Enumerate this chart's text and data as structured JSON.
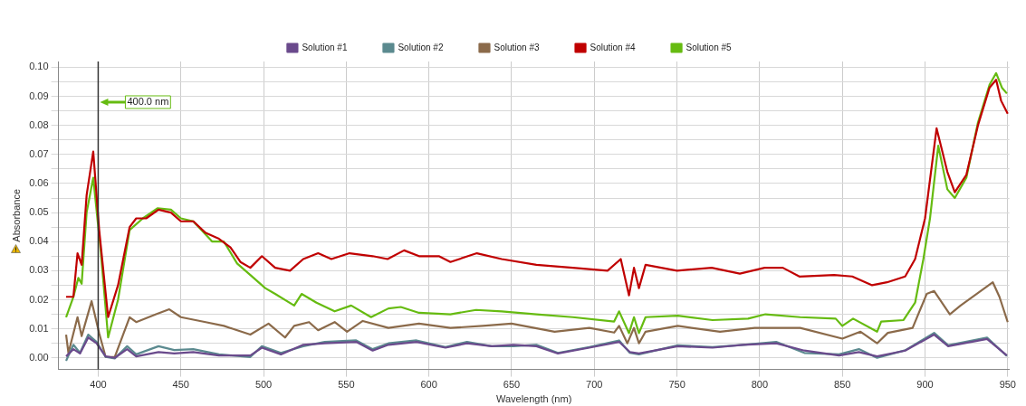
{
  "chart_data": {
    "type": "line",
    "xlabel": "Wavelength (nm)",
    "ylabel": "Absorbance",
    "xlim": [
      376,
      951
    ],
    "ylim": [
      -0.004,
      0.102
    ],
    "xticks": [
      400,
      450,
      500,
      550,
      600,
      650,
      700,
      750,
      800,
      850,
      900,
      950
    ],
    "yticks": [
      {
        "value": 0,
        "label": "0.00"
      },
      {
        "value": 0.005,
        "label": null
      },
      {
        "value": 0.01,
        "label": "0.01"
      },
      {
        "value": 0.015,
        "label": null
      },
      {
        "value": 0.02,
        "label": "0.02"
      },
      {
        "value": 0.025,
        "label": null
      },
      {
        "value": 0.03,
        "label": "0.03"
      },
      {
        "value": 0.035,
        "label": null
      },
      {
        "value": 0.04,
        "label": "0.04"
      },
      {
        "value": 0.045,
        "label": null
      },
      {
        "value": 0.05,
        "label": "0.05"
      },
      {
        "value": 0.055,
        "label": null
      },
      {
        "value": 0.06,
        "label": "0.06"
      },
      {
        "value": 0.065,
        "label": null
      },
      {
        "value": 0.07,
        "label": "0.07"
      },
      {
        "value": 0.075,
        "label": null
      },
      {
        "value": 0.08,
        "label": "0.08"
      },
      {
        "value": 0.085,
        "label": null
      },
      {
        "value": 0.09,
        "label": "0.09"
      },
      {
        "value": 0.095,
        "label": null
      },
      {
        "value": 0.1,
        "label": "0.10"
      }
    ],
    "grid": true,
    "legend": "top",
    "marker": "none",
    "line_style": "solid",
    "ref_lines": [
      {
        "axis": "x",
        "value": 400,
        "label": "400.0 nm",
        "color": "#333333"
      }
    ],
    "series": [
      {
        "name": "Solution #1",
        "color": "#6a4a8c",
        "x": [
          380.6,
          385,
          389,
          394,
          399,
          404.5,
          410,
          417.5,
          423,
          436.5,
          446,
          457.5,
          473,
          492,
          499,
          510.5,
          524,
          537,
          556,
          566,
          575.5,
          592.5,
          610,
          623,
          638,
          651,
          665,
          678,
          697,
          715,
          721.5,
          727,
          750.5,
          771.5,
          790,
          810,
          827,
          848,
          860,
          871,
          888,
          905.5,
          914,
          937.5,
          949.5
        ],
        "values": [
          0.0005,
          0.003,
          0.0015,
          0.007,
          0.005,
          0.0005,
          0.0,
          0.003,
          0.0005,
          0.002,
          0.0015,
          0.002,
          0.0008,
          0.0008,
          0.0035,
          0.0012,
          0.0045,
          0.005,
          0.0055,
          0.0025,
          0.0045,
          0.0055,
          0.0035,
          0.005,
          0.004,
          0.0045,
          0.004,
          0.0015,
          0.0035,
          0.0055,
          0.002,
          0.0015,
          0.004,
          0.0035,
          0.0045,
          0.005,
          0.0025,
          0.0008,
          0.002,
          0.0005,
          0.0025,
          0.008,
          0.004,
          0.0065,
          0.0008
        ]
      },
      {
        "name": "Solution #2",
        "color": "#5b8a8f",
        "x": [
          380.6,
          385,
          389,
          394,
          399,
          404.5,
          410,
          417.5,
          423,
          436.5,
          446,
          457.5,
          473,
          492,
          499,
          510.5,
          524,
          537,
          556,
          566,
          575.5,
          592.5,
          610,
          623,
          638,
          651,
          665,
          678,
          697,
          715,
          721.5,
          727,
          750.5,
          771.5,
          790,
          810,
          827,
          848,
          860,
          871,
          888,
          905.5,
          914,
          937.5,
          949.5
        ],
        "values": [
          -0.001,
          0.0045,
          0.0017,
          0.008,
          0.0055,
          0.0003,
          -0.0002,
          0.004,
          0.0012,
          0.004,
          0.0027,
          0.003,
          0.0012,
          0.0003,
          0.004,
          0.0017,
          0.004,
          0.0055,
          0.006,
          0.003,
          0.005,
          0.006,
          0.0037,
          0.0055,
          0.004,
          0.004,
          0.0045,
          0.0017,
          0.0037,
          0.006,
          0.0017,
          0.0012,
          0.0043,
          0.0037,
          0.0045,
          0.0055,
          0.0017,
          0.0012,
          0.003,
          0.0,
          0.0026,
          0.0086,
          0.0043,
          0.007,
          0.0006
        ]
      },
      {
        "name": "Solution #3",
        "color": "#8b6a4a",
        "x": [
          380.6,
          382,
          387.5,
          390,
          396,
          400.6,
          404.5,
          410,
          419,
          423,
          435,
          443,
          450,
          465,
          476,
          492,
          503,
          513,
          518.5,
          527.5,
          533,
          543,
          550.5,
          560,
          575.5,
          594,
          613,
          632.5,
          650,
          676,
          697,
          712,
          715,
          720,
          724,
          727,
          731,
          750.5,
          776,
          797,
          824.5,
          850,
          861,
          871,
          877.5,
          892.5,
          901,
          905.5,
          915,
          921.5,
          941,
          945,
          950
        ],
        "values": [
          0.008,
          0.0017,
          0.014,
          0.0075,
          0.0195,
          0.0085,
          0.0003,
          0.0003,
          0.014,
          0.0123,
          0.015,
          0.0167,
          0.014,
          0.0123,
          0.011,
          0.008,
          0.0118,
          0.007,
          0.011,
          0.0123,
          0.0095,
          0.0123,
          0.009,
          0.0127,
          0.0103,
          0.0118,
          0.0103,
          0.011,
          0.0118,
          0.009,
          0.0103,
          0.0087,
          0.011,
          0.005,
          0.0103,
          0.005,
          0.009,
          0.011,
          0.009,
          0.0103,
          0.0103,
          0.0066,
          0.009,
          0.005,
          0.0086,
          0.0103,
          0.022,
          0.023,
          0.015,
          0.018,
          0.026,
          0.021,
          0.0123
        ]
      },
      {
        "name": "Solution #4",
        "color": "#c00000",
        "x": [
          380.6,
          385,
          387.5,
          390,
          393,
          397,
          400.6,
          406,
          412,
          419,
          423,
          429,
          436.5,
          444,
          450,
          457.5,
          465,
          473,
          480,
          486,
          492,
          499,
          507,
          516,
          524,
          533,
          541,
          552,
          566,
          575,
          585,
          594,
          606,
          613,
          629,
          644,
          665,
          687,
          708,
          716,
          721,
          724,
          727,
          731,
          750,
          771,
          788,
          803,
          814,
          824,
          845,
          856,
          868,
          877,
          888,
          894,
          900,
          907,
          913.5,
          918,
          925,
          932,
          939,
          943,
          946,
          950
        ],
        "values": [
          0.021,
          0.021,
          0.036,
          0.032,
          0.056,
          0.071,
          0.044,
          0.014,
          0.025,
          0.045,
          0.048,
          0.048,
          0.051,
          0.05,
          0.047,
          0.047,
          0.043,
          0.041,
          0.038,
          0.033,
          0.031,
          0.035,
          0.031,
          0.03,
          0.034,
          0.036,
          0.034,
          0.036,
          0.035,
          0.034,
          0.037,
          0.035,
          0.035,
          0.033,
          0.036,
          0.034,
          0.032,
          0.031,
          0.03,
          0.034,
          0.0215,
          0.031,
          0.024,
          0.032,
          0.03,
          0.031,
          0.029,
          0.031,
          0.031,
          0.028,
          0.0285,
          0.028,
          0.025,
          0.026,
          0.028,
          0.034,
          0.048,
          0.079,
          0.064,
          0.057,
          0.063,
          0.08,
          0.093,
          0.0957,
          0.0885,
          0.084
        ]
      },
      {
        "name": "Solution #5",
        "color": "#66bb11",
        "x": [
          380.6,
          385,
          388,
          390,
          393,
          397,
          401.5,
          406,
          412,
          419,
          427,
          436,
          444,
          450,
          457.5,
          469,
          476,
          484,
          492,
          501,
          507,
          518.5,
          523,
          532,
          543,
          553,
          565,
          575.5,
          583,
          594,
          613,
          628.5,
          644,
          665,
          687,
          712,
          715,
          721,
          724,
          727,
          731,
          750.5,
          771.5,
          793,
          803.5,
          824.5,
          846,
          850,
          856.5,
          871,
          873.5,
          887,
          894,
          899,
          903,
          908,
          913.5,
          918,
          925,
          932,
          939,
          943,
          946.5,
          949.5
        ],
        "values": [
          0.014,
          0.021,
          0.0275,
          0.0255,
          0.05,
          0.062,
          0.037,
          0.007,
          0.02,
          0.044,
          0.048,
          0.0515,
          0.051,
          0.048,
          0.047,
          0.04,
          0.04,
          0.0325,
          0.0285,
          0.024,
          0.022,
          0.018,
          0.022,
          0.019,
          0.016,
          0.018,
          0.014,
          0.017,
          0.0175,
          0.0155,
          0.015,
          0.0165,
          0.016,
          0.015,
          0.014,
          0.0125,
          0.016,
          0.0085,
          0.014,
          0.0085,
          0.014,
          0.0145,
          0.013,
          0.0135,
          0.015,
          0.014,
          0.0135,
          0.011,
          0.0135,
          0.009,
          0.0125,
          0.013,
          0.019,
          0.034,
          0.048,
          0.073,
          0.058,
          0.055,
          0.062,
          0.081,
          0.094,
          0.098,
          0.093,
          0.091
        ]
      }
    ]
  }
}
